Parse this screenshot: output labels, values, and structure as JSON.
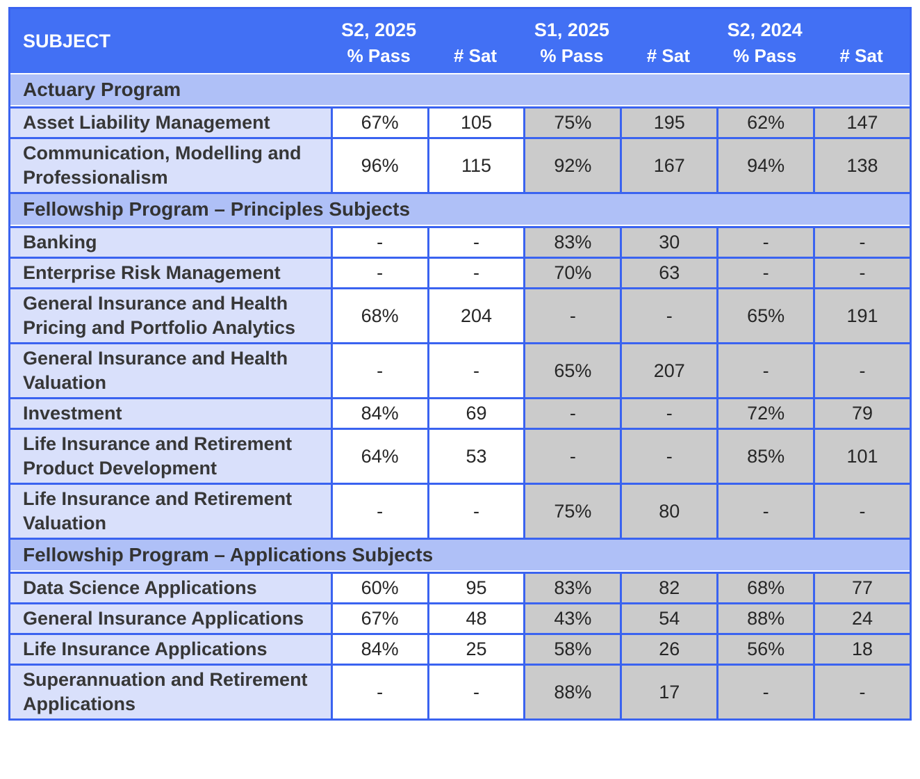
{
  "colors": {
    "header-blue": "#4270F4",
    "border-blue": "#3A63F0",
    "band-blue": "#AFC0F7",
    "subject-blue": "#D9E0FB",
    "gray-cell": "#CBCBCB",
    "header-text": "#FFFFFF",
    "body-text": "#333333"
  },
  "header": {
    "subject_label": "SUBJECT",
    "pass_label": "% Pass",
    "sat_label": "# Sat",
    "periods": [
      {
        "label": "S2, 2025"
      },
      {
        "label": "S1, 2025"
      },
      {
        "label": "S2, 2024"
      }
    ]
  },
  "sections": [
    {
      "title": "Actuary Program",
      "rows": [
        {
          "subject": "Asset Liability Management",
          "values": [
            "67%",
            "105",
            "75%",
            "195",
            "62%",
            "147"
          ]
        },
        {
          "subject": "Communication, Modelling and Professionalism",
          "values": [
            "96%",
            "115",
            "92%",
            "167",
            "94%",
            "138"
          ]
        }
      ]
    },
    {
      "title": "Fellowship Program – Principles Subjects",
      "rows": [
        {
          "subject": "Banking",
          "values": [
            "-",
            "-",
            "83%",
            "30",
            "-",
            "-"
          ]
        },
        {
          "subject": "Enterprise Risk Management",
          "values": [
            "-",
            "-",
            "70%",
            "63",
            "-",
            "-"
          ]
        },
        {
          "subject": "General Insurance and Health Pricing and Portfolio Analytics",
          "values": [
            "68%",
            "204",
            "-",
            "-",
            "65%",
            "191"
          ]
        },
        {
          "subject": "General Insurance and Health Valuation",
          "values": [
            "-",
            "-",
            "65%",
            "207",
            "-",
            "-"
          ]
        },
        {
          "subject": "Investment",
          "values": [
            "84%",
            "69",
            "-",
            "-",
            "72%",
            "79"
          ]
        },
        {
          "subject": "Life Insurance and Retirement Product Development",
          "values": [
            "64%",
            "53",
            "-",
            "-",
            "85%",
            "101"
          ]
        },
        {
          "subject": "Life Insurance and Retirement Valuation",
          "values": [
            "-",
            "-",
            "75%",
            "80",
            "-",
            "-"
          ]
        }
      ]
    },
    {
      "title": "Fellowship Program – Applications Subjects",
      "rows": [
        {
          "subject": "Data Science Applications",
          "values": [
            "60%",
            "95",
            "83%",
            "82",
            "68%",
            "77"
          ]
        },
        {
          "subject": "General Insurance Applications",
          "values": [
            "67%",
            "48",
            "43%",
            "54",
            "88%",
            "24"
          ]
        },
        {
          "subject": "Life Insurance Applications",
          "values": [
            "84%",
            "25",
            "58%",
            "26",
            "56%",
            "18"
          ]
        },
        {
          "subject": "Superannuation and Retirement Applications",
          "values": [
            "-",
            "-",
            "88%",
            "17",
            "-",
            "-"
          ]
        }
      ]
    }
  ]
}
